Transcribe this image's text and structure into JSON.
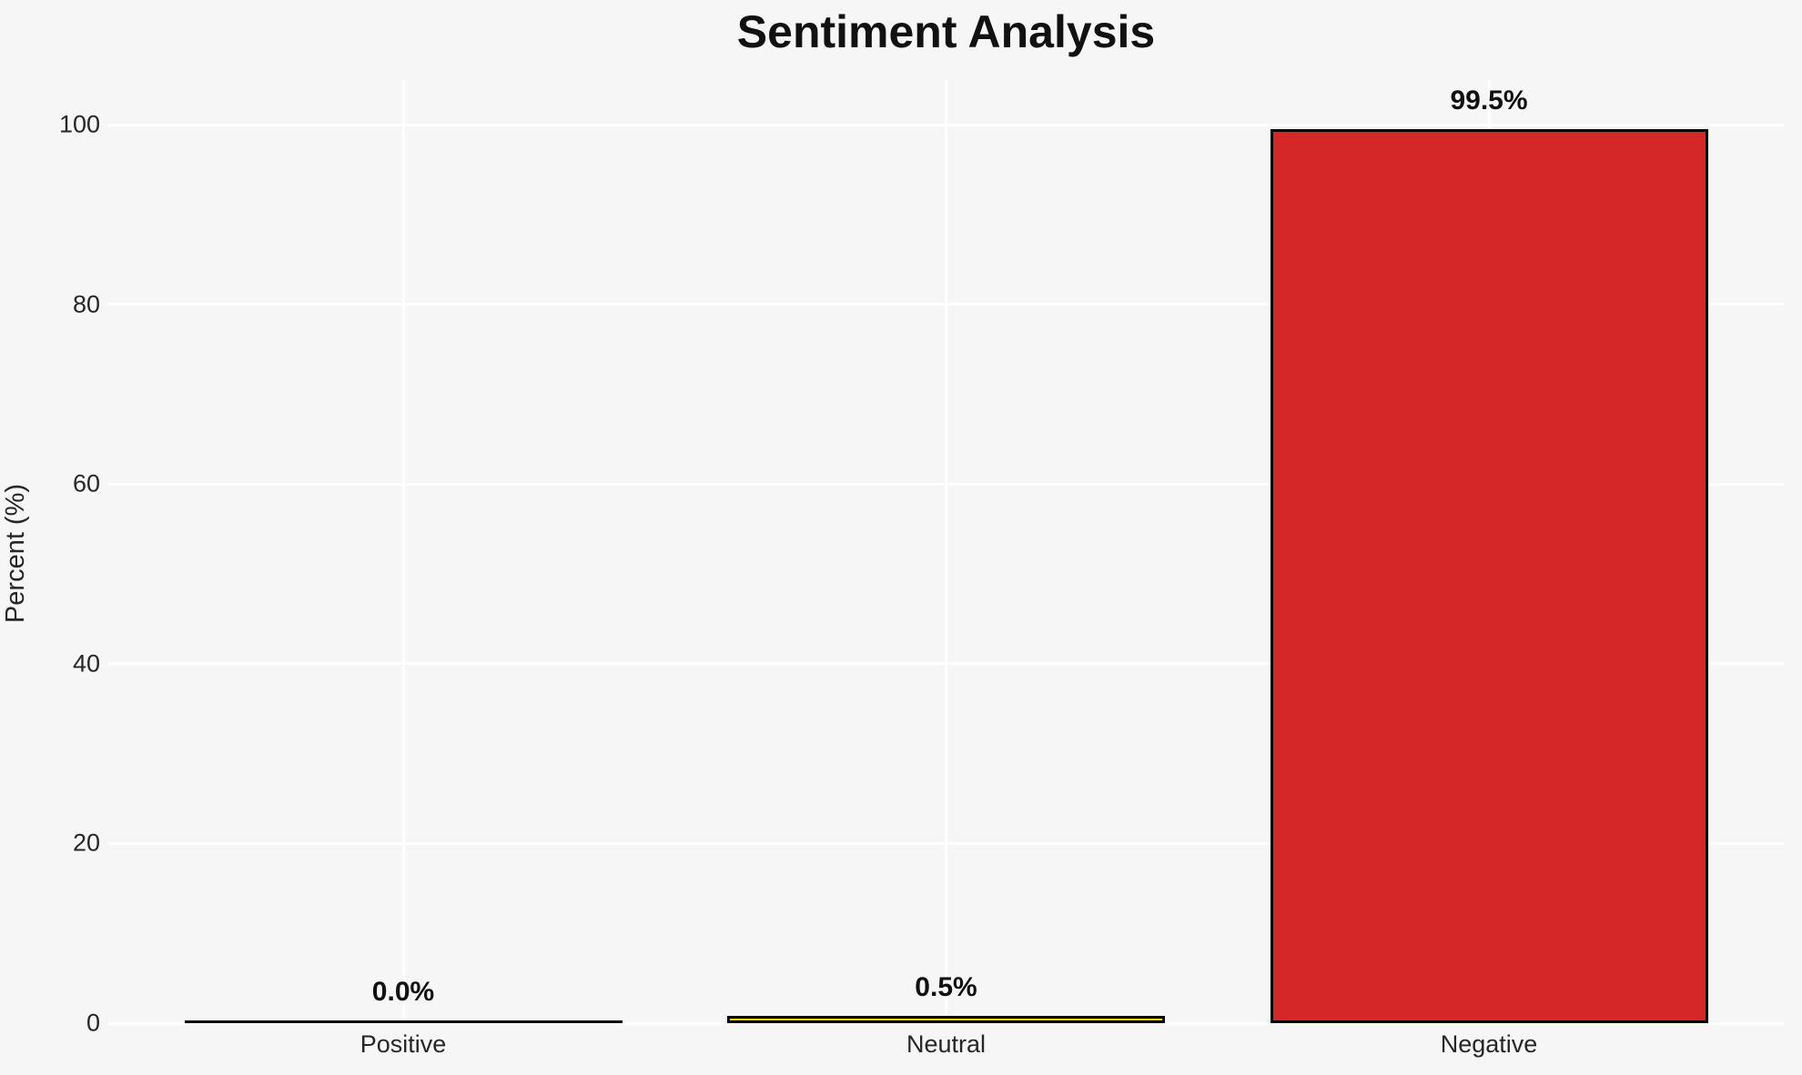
{
  "title": "Sentiment Analysis",
  "chart_data": {
    "type": "bar",
    "title": "Sentiment Analysis",
    "categories": [
      "Positive",
      "Neutral",
      "Negative"
    ],
    "values": [
      0.0,
      0.5,
      99.5
    ],
    "value_labels": [
      "0.0%",
      "0.5%",
      "99.5%"
    ],
    "bar_colors": [
      "#999999",
      "#ffd700",
      "#d62728"
    ],
    "bar_edge_color": "#000000",
    "xlabel": "",
    "ylabel": "Percent (%)",
    "yticks": [
      0,
      20,
      40,
      60,
      80,
      100
    ],
    "ylim": [
      0,
      105
    ],
    "grid": true,
    "grid_color": "#ffffff",
    "background_color": "#f6f6f7",
    "tick_text_color": "#262626",
    "title_text_color": "#111111",
    "legend": "none"
  }
}
